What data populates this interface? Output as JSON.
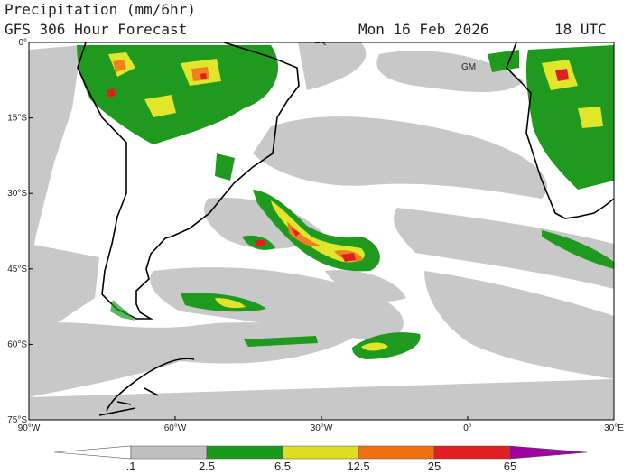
{
  "header": {
    "title": "Precipitation (mm/6hr)",
    "subtitle": "GFS 306 Hour Forecast",
    "valid": "Mon 16 Feb 2026",
    "time": "18 UTC"
  },
  "map": {
    "lat_labels": [
      "0°",
      "15°S",
      "30°S",
      "45°S",
      "60°S",
      "75°S"
    ],
    "lon_labels": [
      "90°W",
      "60°W",
      "30°W",
      "0°",
      "30°E"
    ],
    "annotations": [
      "EQ",
      "GM"
    ]
  },
  "legend": {
    "labels": [
      ".1",
      "2.5",
      "6.5",
      "12.5",
      "25",
      "65"
    ],
    "colors": [
      "#ffffff",
      "#c0c0c0",
      "#1a9a1a",
      "#dede20",
      "#f07010",
      "#e02020",
      "#a000a0"
    ]
  }
}
